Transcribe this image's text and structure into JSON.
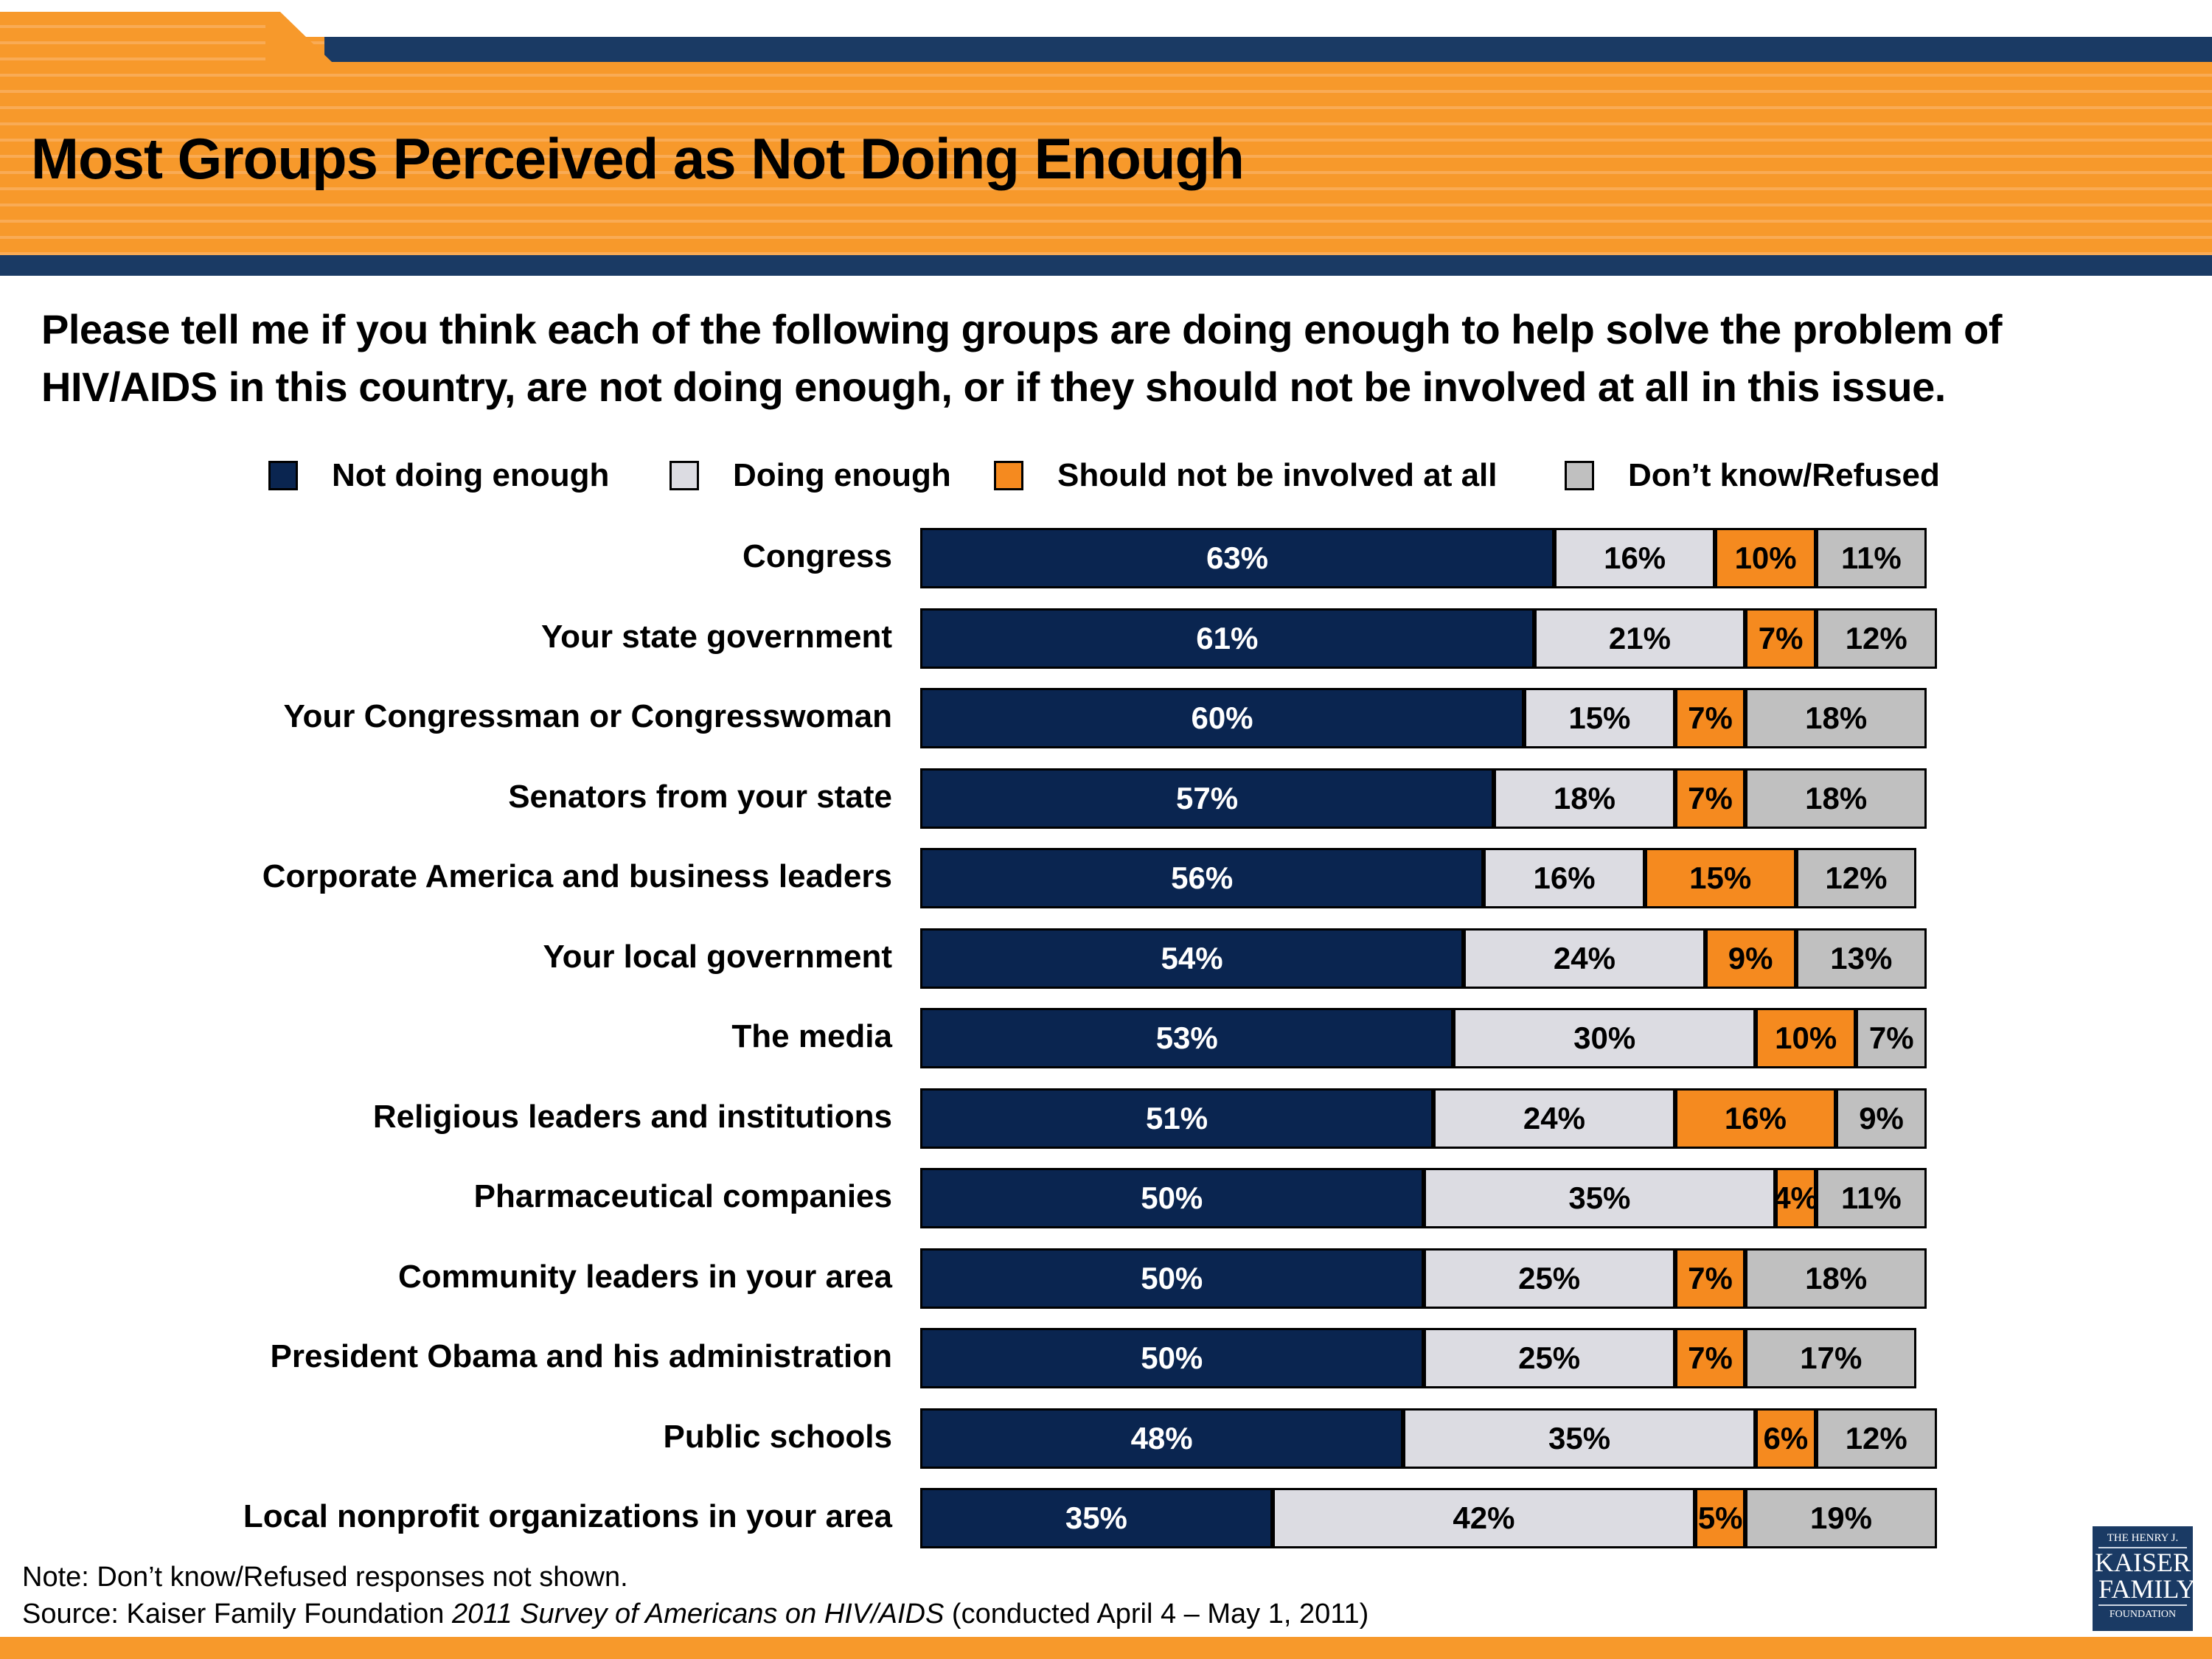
{
  "header": {
    "title": "Most Groups Perceived as Not Doing Enough"
  },
  "question": "Please tell me if you think each of the following groups are doing enough to help solve the problem of HIV/AIDS in this country, are not doing enough, or if they should not be involved at all in this issue.",
  "legend": [
    {
      "label": "Not doing enough",
      "color": "#0a2550"
    },
    {
      "label": "Doing enough",
      "color": "#dcdce2"
    },
    {
      "label": "Should not be involved at all",
      "color": "#f58a1f"
    },
    {
      "label": "Don’t know/Refused",
      "color": "#c0c0c0"
    }
  ],
  "chart_data": {
    "type": "bar",
    "orientation": "horizontal-stacked-100",
    "title": "Most Groups Perceived as Not Doing Enough",
    "xlabel": "",
    "ylabel": "",
    "xlim": [
      0,
      100
    ],
    "grid": false,
    "legend_position": "top",
    "categories": [
      "Congress",
      "Your state government",
      "Your Congressman or Congresswoman",
      "Senators from your state",
      "Corporate America and business leaders",
      "Your local government",
      "The media",
      "Religious leaders and institutions",
      "Pharmaceutical companies",
      "Community leaders in your area",
      "President Obama and his administration",
      "Public schools",
      "Local nonprofit organizations in your area"
    ],
    "series": [
      {
        "name": "Not doing enough",
        "color": "#0a2550",
        "label_color": "#ffffff",
        "values": [
          63,
          61,
          60,
          57,
          56,
          54,
          53,
          51,
          50,
          50,
          50,
          48,
          35
        ]
      },
      {
        "name": "Doing enough",
        "color": "#dcdce2",
        "label_color": "#000000",
        "values": [
          16,
          21,
          15,
          18,
          16,
          24,
          30,
          24,
          35,
          25,
          25,
          35,
          42
        ]
      },
      {
        "name": "Should not be involved at all",
        "color": "#f58a1f",
        "label_color": "#000000",
        "values": [
          10,
          7,
          7,
          7,
          15,
          9,
          10,
          16,
          4,
          7,
          7,
          6,
          5
        ]
      },
      {
        "name": "Don’t know/Refused",
        "color": "#c0c0c0",
        "label_color": "#000000",
        "values": [
          11,
          12,
          18,
          18,
          12,
          13,
          7,
          9,
          11,
          18,
          17,
          12,
          19
        ]
      }
    ],
    "value_suffix": "%"
  },
  "footer": {
    "note": "Note: Don’t know/Refused responses not shown.",
    "source_prefix": "Source: Kaiser Family Foundation ",
    "source_italic": "2011 Survey of Americans on HIV/AIDS",
    "source_suffix": " (conducted April 4 – May 1, 2011)"
  },
  "logo": {
    "line1": "THE HENRY J.",
    "line2": "KAISER",
    "line3": "FAMILY",
    "line4": "FOUNDATION"
  }
}
